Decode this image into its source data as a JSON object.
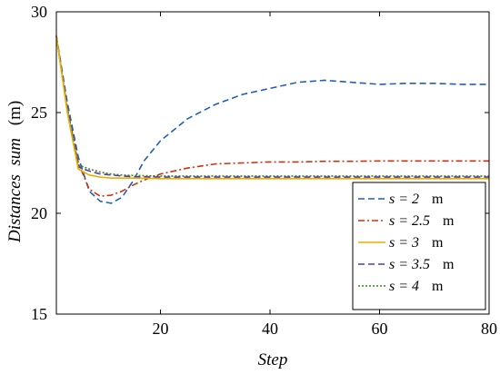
{
  "chart_data": {
    "type": "line",
    "xlabel": "Step",
    "ylabel": "Distances  sum",
    "ylabel_unit": "(m)",
    "xlim": [
      1,
      80
    ],
    "ylim": [
      15,
      30
    ],
    "xticks": [
      20,
      40,
      60,
      80
    ],
    "yticks": [
      15,
      20,
      25,
      30
    ],
    "grid": false,
    "legend_position": "bottom-right",
    "series": [
      {
        "name": "s = 2   m",
        "legend_var": "s",
        "legend_value": "= 2",
        "legend_unit": "m",
        "color": "#1f5fb4",
        "dash": "dashed",
        "x": [
          1,
          3,
          5,
          7,
          9,
          11,
          13,
          15,
          17,
          20,
          25,
          30,
          35,
          40,
          45,
          50,
          55,
          60,
          65,
          70,
          75,
          80
        ],
        "y": [
          28.8,
          25.5,
          22.8,
          21.1,
          20.6,
          20.5,
          20.8,
          21.6,
          22.6,
          23.6,
          24.7,
          25.4,
          25.9,
          26.2,
          26.5,
          26.6,
          26.5,
          26.4,
          26.45,
          26.45,
          26.4,
          26.4
        ]
      },
      {
        "name": "s = 2.5   m",
        "legend_var": "s",
        "legend_value": "= 2.5",
        "legend_unit": "m",
        "color": "#cc3311",
        "dash": "dashdot",
        "x": [
          1,
          3,
          5,
          7,
          9,
          11,
          13,
          15,
          17,
          20,
          25,
          30,
          35,
          40,
          45,
          50,
          55,
          60,
          65,
          70,
          75,
          80
        ],
        "y": [
          28.8,
          25.2,
          22.5,
          21.2,
          20.85,
          20.9,
          21.1,
          21.4,
          21.65,
          21.95,
          22.25,
          22.45,
          22.5,
          22.55,
          22.55,
          22.58,
          22.58,
          22.6,
          22.6,
          22.6,
          22.6,
          22.6
        ]
      },
      {
        "name": "s = 3   m",
        "legend_var": "s",
        "legend_value": "= 3",
        "legend_unit": "m",
        "color": "#e6b000",
        "dash": "solid",
        "x": [
          1,
          3,
          5,
          7,
          9,
          11,
          13,
          15,
          20,
          30,
          40,
          50,
          60,
          70,
          80
        ],
        "y": [
          28.8,
          25.0,
          22.2,
          21.9,
          21.8,
          21.75,
          21.75,
          21.75,
          21.72,
          21.72,
          21.72,
          21.72,
          21.72,
          21.72,
          21.72
        ]
      },
      {
        "name": "s = 3.5   m",
        "legend_var": "s",
        "legend_value": "= 3.5",
        "legend_unit": "m",
        "color": "#5a3a9a",
        "dash": "dashed",
        "x": [
          1,
          3,
          5,
          7,
          9,
          11,
          13,
          15,
          20,
          30,
          40,
          50,
          60,
          70,
          80
        ],
        "y": [
          28.8,
          25.1,
          22.3,
          22.1,
          21.95,
          21.9,
          21.85,
          21.82,
          21.8,
          21.8,
          21.8,
          21.8,
          21.8,
          21.8,
          21.8
        ]
      },
      {
        "name": "s = 4   m",
        "legend_var": "s",
        "legend_value": "= 4",
        "legend_unit": "m",
        "color": "#3a8a1a",
        "dash": "dotted",
        "x": [
          1,
          3,
          5,
          7,
          9,
          11,
          13,
          15,
          20,
          30,
          40,
          50,
          60,
          70,
          80
        ],
        "y": [
          28.8,
          25.2,
          22.4,
          22.2,
          22.05,
          21.95,
          21.9,
          21.88,
          21.85,
          21.85,
          21.85,
          21.85,
          21.85,
          21.85,
          21.85
        ]
      }
    ]
  }
}
